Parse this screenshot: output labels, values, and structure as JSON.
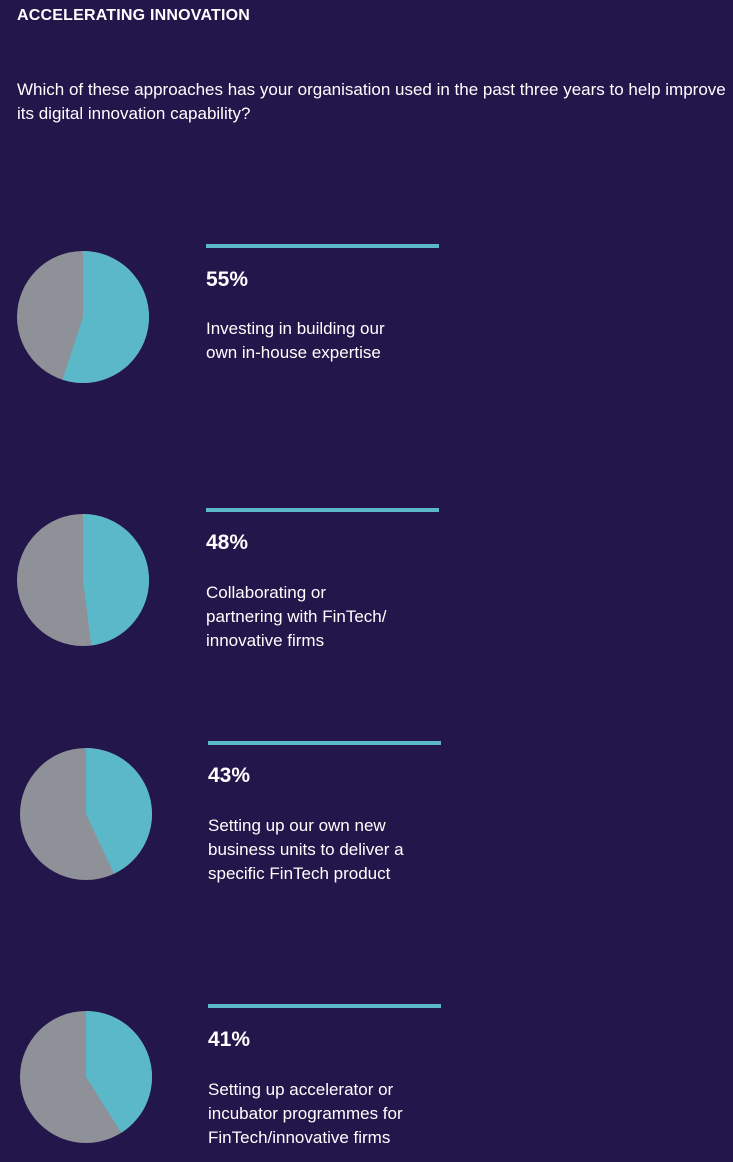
{
  "header": {
    "title": "ACCELERATING INNOVATION",
    "question": "Which of these approaches has your organisation used in the past three years to help improve its digital innovation capability?"
  },
  "colors": {
    "background": "#22164a",
    "accent": "#5ab8c8",
    "remainder": "#8f9198",
    "text": "#ffffff"
  },
  "chart_data": [
    {
      "type": "pie",
      "value": 55,
      "percent_label": "55%",
      "label": "Investing in building our\nown in-house expertise"
    },
    {
      "type": "pie",
      "value": 48,
      "percent_label": "48%",
      "label": "Collaborating or\npartnering with FinTech/\ninnovative firms"
    },
    {
      "type": "pie",
      "value": 43,
      "percent_label": "43%",
      "label": "Setting up our own new\nbusiness units to deliver a\nspecific FinTech product"
    },
    {
      "type": "pie",
      "value": 41,
      "percent_label": "41%",
      "label": "Setting up accelerator or\nincubator programmes for\nFinTech/innovative firms"
    }
  ]
}
